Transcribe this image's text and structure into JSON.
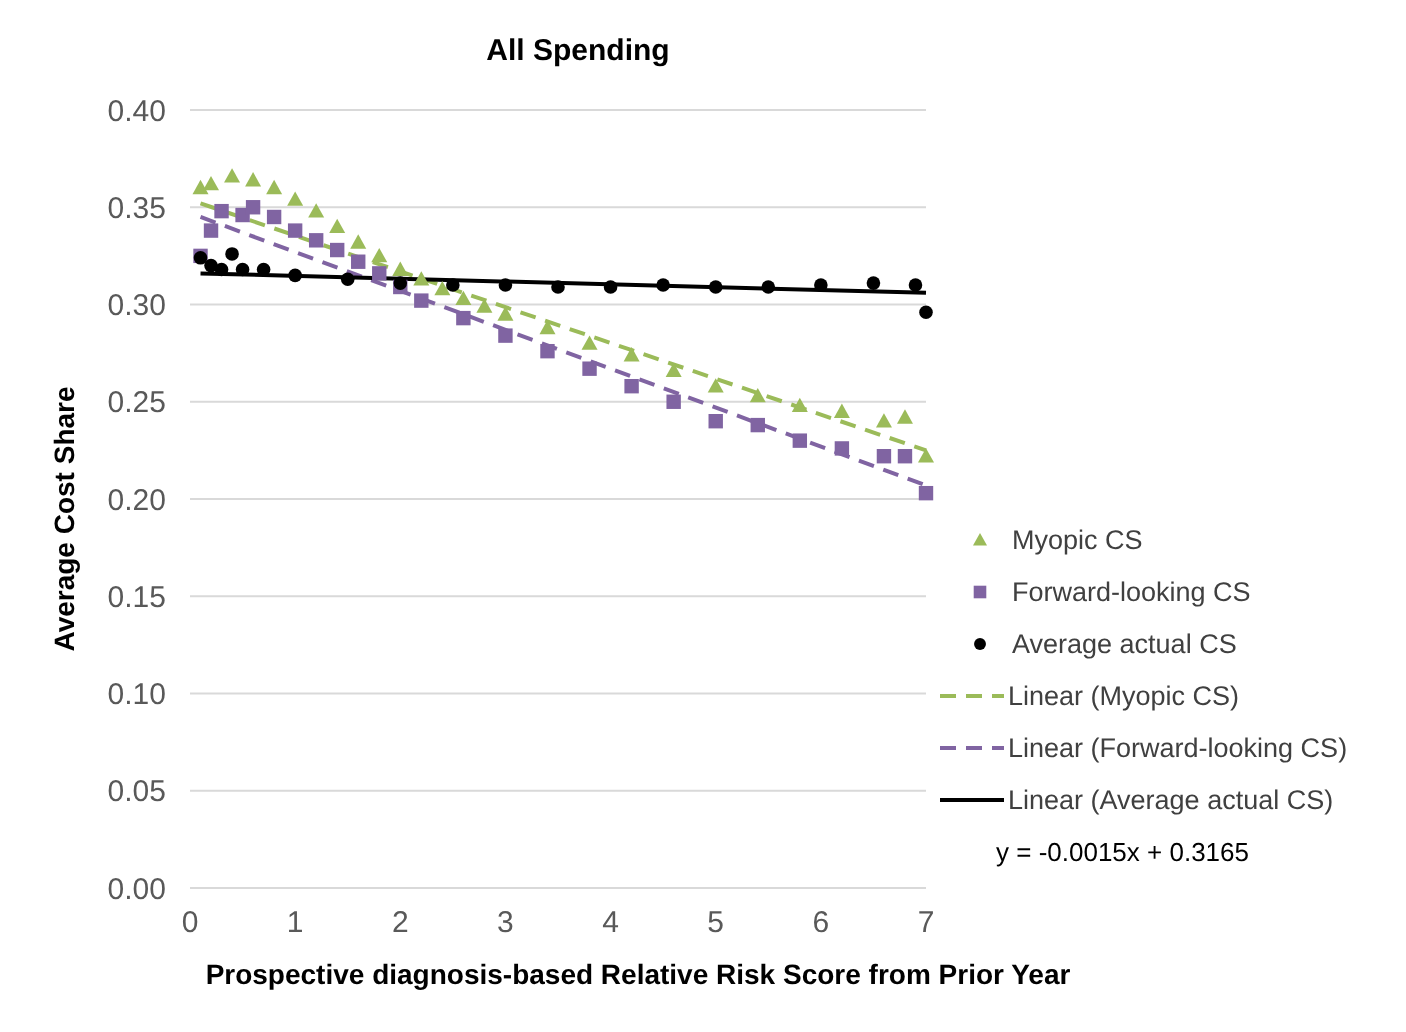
{
  "chart_data": {
    "type": "scatter",
    "title": "All Spending",
    "xlabel": "Prospective diagnosis-based Relative Risk Score from Prior Year",
    "ylabel": "Average Cost Share",
    "xlim": [
      0,
      7
    ],
    "xticks": [
      0,
      1,
      2,
      3,
      4,
      5,
      6,
      7
    ],
    "ylim": [
      0,
      0.4
    ],
    "yticks": [
      {
        "value": 0,
        "label": "0.00"
      },
      {
        "value": 0.05,
        "label": "0.05"
      },
      {
        "value": 0.1,
        "label": "0.10"
      },
      {
        "value": 0.15,
        "label": "0.15"
      },
      {
        "value": 0.2,
        "label": "0.20"
      },
      {
        "value": 0.25,
        "label": "0.25"
      },
      {
        "value": 0.3,
        "label": "0.30"
      },
      {
        "value": 0.35,
        "label": "0.35"
      },
      {
        "value": 0.4,
        "label": "0.40"
      }
    ],
    "grid": "y",
    "legend": "right",
    "series": [
      {
        "name": "Myopic CS",
        "marker": "triangle",
        "color": "#9bbb59",
        "x": [
          0.1,
          0.2,
          0.4,
          0.6,
          0.8,
          1.0,
          1.2,
          1.4,
          1.6,
          1.8,
          2.0,
          2.2,
          2.4,
          2.6,
          2.8,
          3.0,
          3.4,
          3.8,
          4.2,
          4.6,
          5.0,
          5.4,
          5.8,
          6.2,
          6.6,
          6.8,
          7.0
        ],
        "values": [
          0.36,
          0.362,
          0.366,
          0.364,
          0.36,
          0.354,
          0.348,
          0.34,
          0.332,
          0.325,
          0.318,
          0.313,
          0.308,
          0.303,
          0.299,
          0.295,
          0.288,
          0.28,
          0.274,
          0.266,
          0.258,
          0.253,
          0.248,
          0.245,
          0.24,
          0.242,
          0.222
        ]
      },
      {
        "name": "Forward-looking CS",
        "marker": "square",
        "color": "#8064a2",
        "x": [
          0.1,
          0.2,
          0.3,
          0.5,
          0.6,
          0.8,
          1.0,
          1.2,
          1.4,
          1.6,
          1.8,
          2.0,
          2.2,
          2.6,
          3.0,
          3.4,
          3.8,
          4.2,
          4.6,
          5.0,
          5.4,
          5.8,
          6.2,
          6.6,
          6.8,
          7.0
        ],
        "values": [
          0.325,
          0.338,
          0.348,
          0.346,
          0.35,
          0.345,
          0.338,
          0.333,
          0.328,
          0.322,
          0.316,
          0.309,
          0.302,
          0.293,
          0.284,
          0.276,
          0.267,
          0.258,
          0.25,
          0.24,
          0.238,
          0.23,
          0.226,
          0.222,
          0.222,
          0.203
        ]
      },
      {
        "name": "Average actual CS",
        "marker": "circle",
        "color": "#000000",
        "x": [
          0.1,
          0.2,
          0.3,
          0.4,
          0.5,
          0.7,
          1.0,
          1.5,
          2.0,
          2.5,
          3.0,
          3.5,
          4.0,
          4.5,
          5.0,
          5.5,
          6.0,
          6.5,
          6.9,
          7.0
        ],
        "values": [
          0.324,
          0.32,
          0.318,
          0.326,
          0.318,
          0.318,
          0.315,
          0.313,
          0.311,
          0.31,
          0.31,
          0.309,
          0.309,
          0.31,
          0.309,
          0.309,
          0.31,
          0.311,
          0.31,
          0.296
        ]
      },
      {
        "name": "Linear (Myopic CS)",
        "type": "line",
        "line_style": "dashed",
        "color": "#9bbb59",
        "x": [
          0.1,
          7.0
        ],
        "values": [
          0.352,
          0.225
        ]
      },
      {
        "name": "Linear (Forward-looking CS)",
        "type": "line",
        "line_style": "dashed",
        "color": "#8064a2",
        "x": [
          0.1,
          7.0
        ],
        "values": [
          0.345,
          0.207
        ]
      },
      {
        "name": "Linear (Average actual CS)",
        "type": "line",
        "line_style": "solid",
        "color": "#000000",
        "x": [
          0.1,
          7.0
        ],
        "values": [
          0.316,
          0.306
        ]
      }
    ],
    "annotations": [
      "y = -0.0015x + 0.3165"
    ]
  }
}
